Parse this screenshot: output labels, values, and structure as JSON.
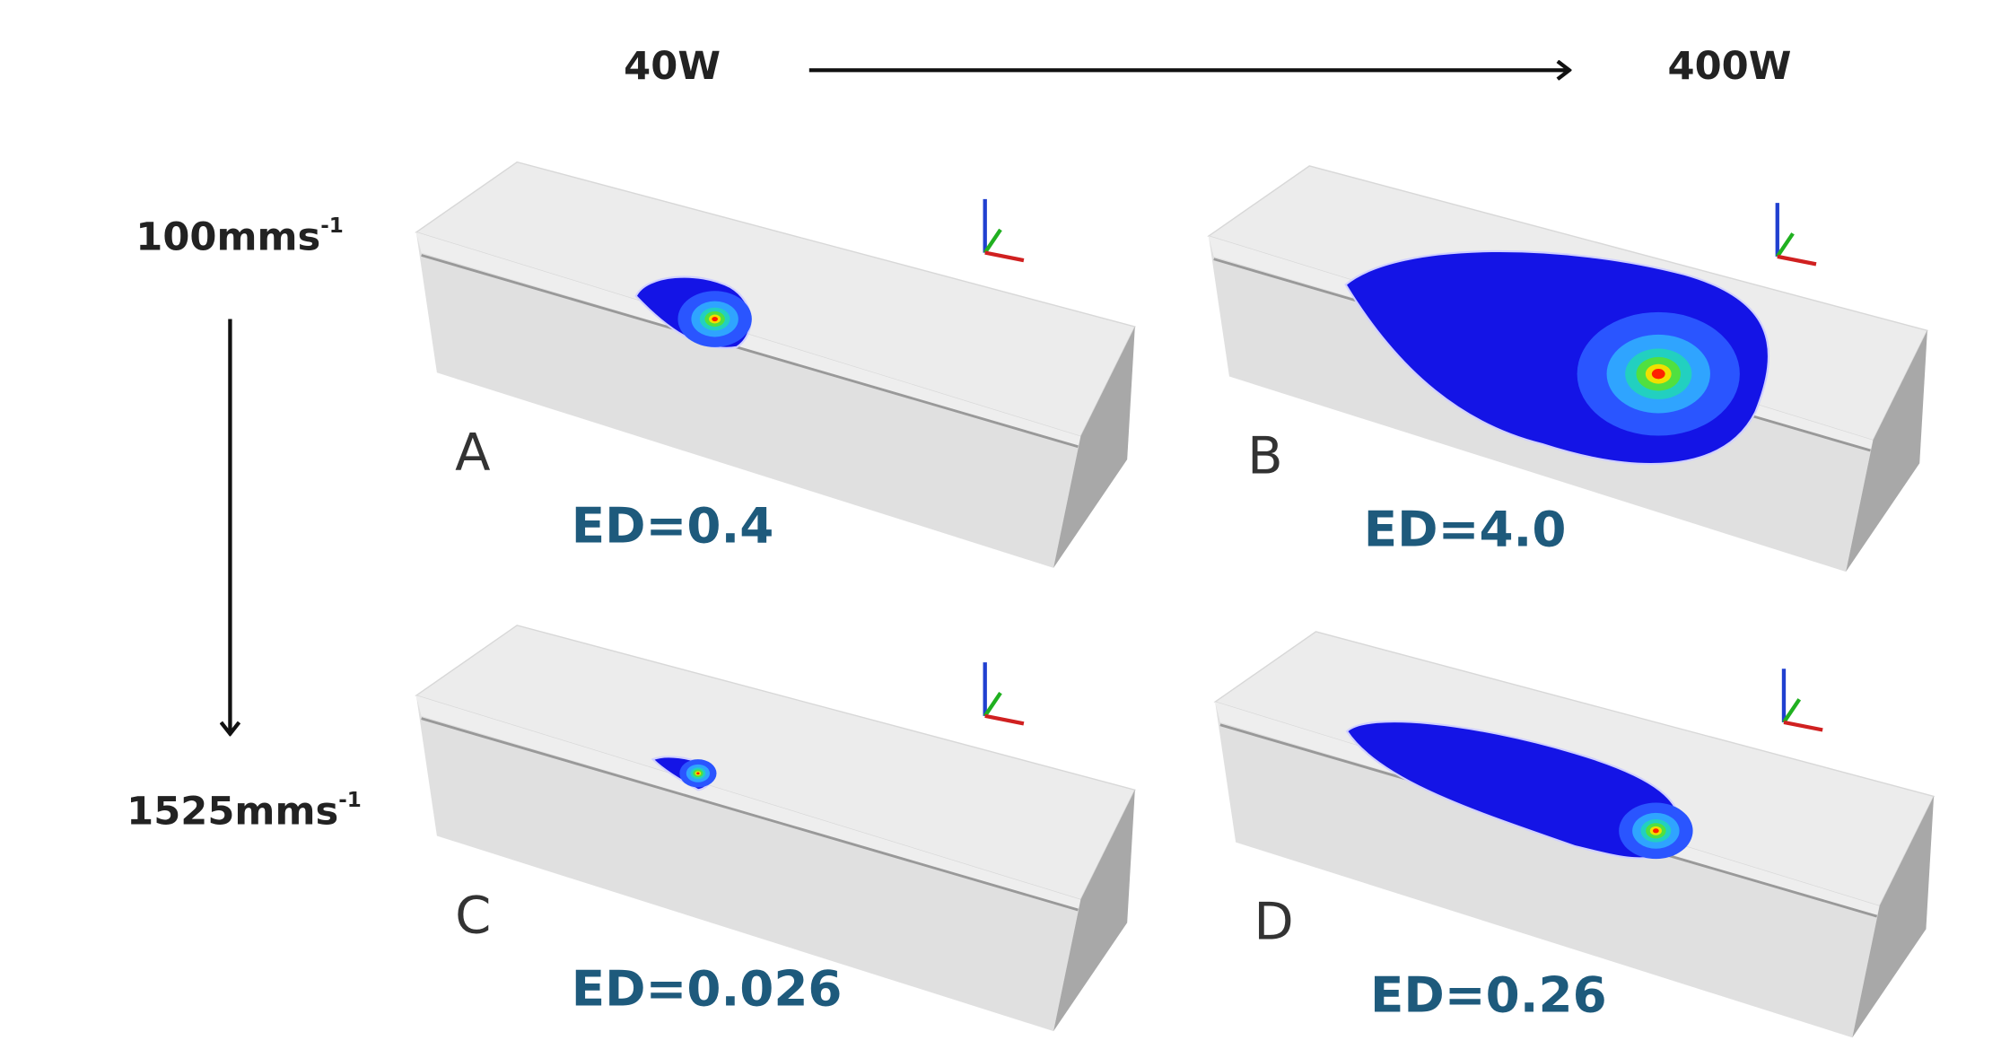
{
  "header": {
    "power_low": "40W",
    "power_high": "400W"
  },
  "speeds": [
    {
      "text": "100mms",
      "superscript": "-1"
    },
    {
      "text": "1525mms",
      "superscript": "-1"
    }
  ],
  "panels": [
    {
      "label": "A",
      "energy_density": "ED=0.4"
    },
    {
      "label": "B",
      "energy_density": "ED=4.0"
    },
    {
      "label": "C",
      "energy_density": "ED=0.026"
    },
    {
      "label": "D",
      "energy_density": "ED=0.26"
    }
  ]
}
